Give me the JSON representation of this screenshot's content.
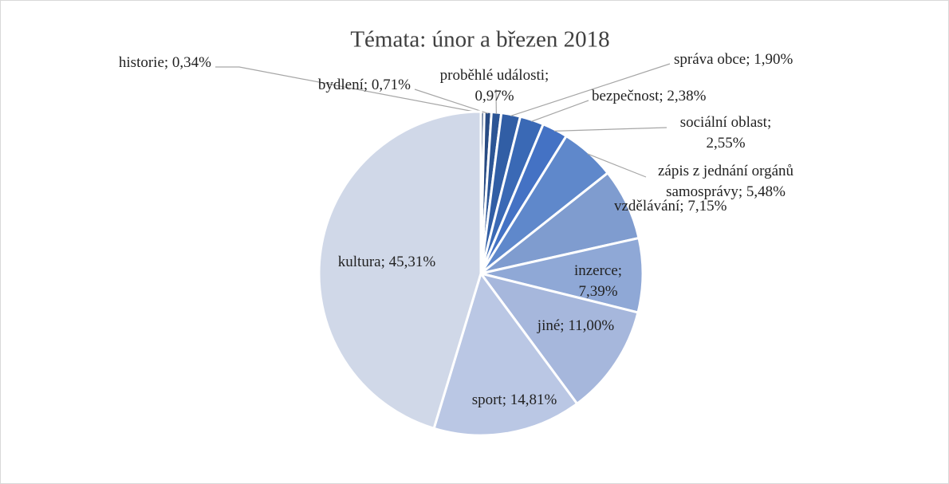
{
  "chart_data": {
    "type": "pie",
    "title": "Témata: únor a březen 2018",
    "values": [
      0.34,
      0.71,
      0.97,
      1.9,
      2.38,
      2.55,
      5.48,
      7.15,
      7.39,
      11.0,
      14.81,
      45.31
    ],
    "value_labels": [
      [
        "historie; 0,34%"
      ],
      [
        "bydlení; 0,71%"
      ],
      [
        "proběhlé události;",
        "0,97%"
      ],
      [
        "správa obce; 1,90%"
      ],
      [
        "bezpečnost; 2,38%"
      ],
      [
        "sociální oblast;",
        "2,55%"
      ],
      [
        "zápis z jednání orgánů",
        "samosprávy; 5,48%"
      ],
      [
        "vzdělávání; 7,15%"
      ],
      [
        "inzerce;",
        "7,39%"
      ],
      [
        "jiné; 11,00%"
      ],
      [
        "sport; 14,81%"
      ],
      [
        "kultura; 45,31%"
      ]
    ],
    "colors": [
      "#23406f",
      "#284b83",
      "#2c5595",
      "#315ea5",
      "#3a69b5",
      "#4472c4",
      "#5f88cb",
      "#7f9ccf",
      "#8fa8d6",
      "#a6b7dc",
      "#bac7e4",
      "#d0d8e8"
    ]
  }
}
